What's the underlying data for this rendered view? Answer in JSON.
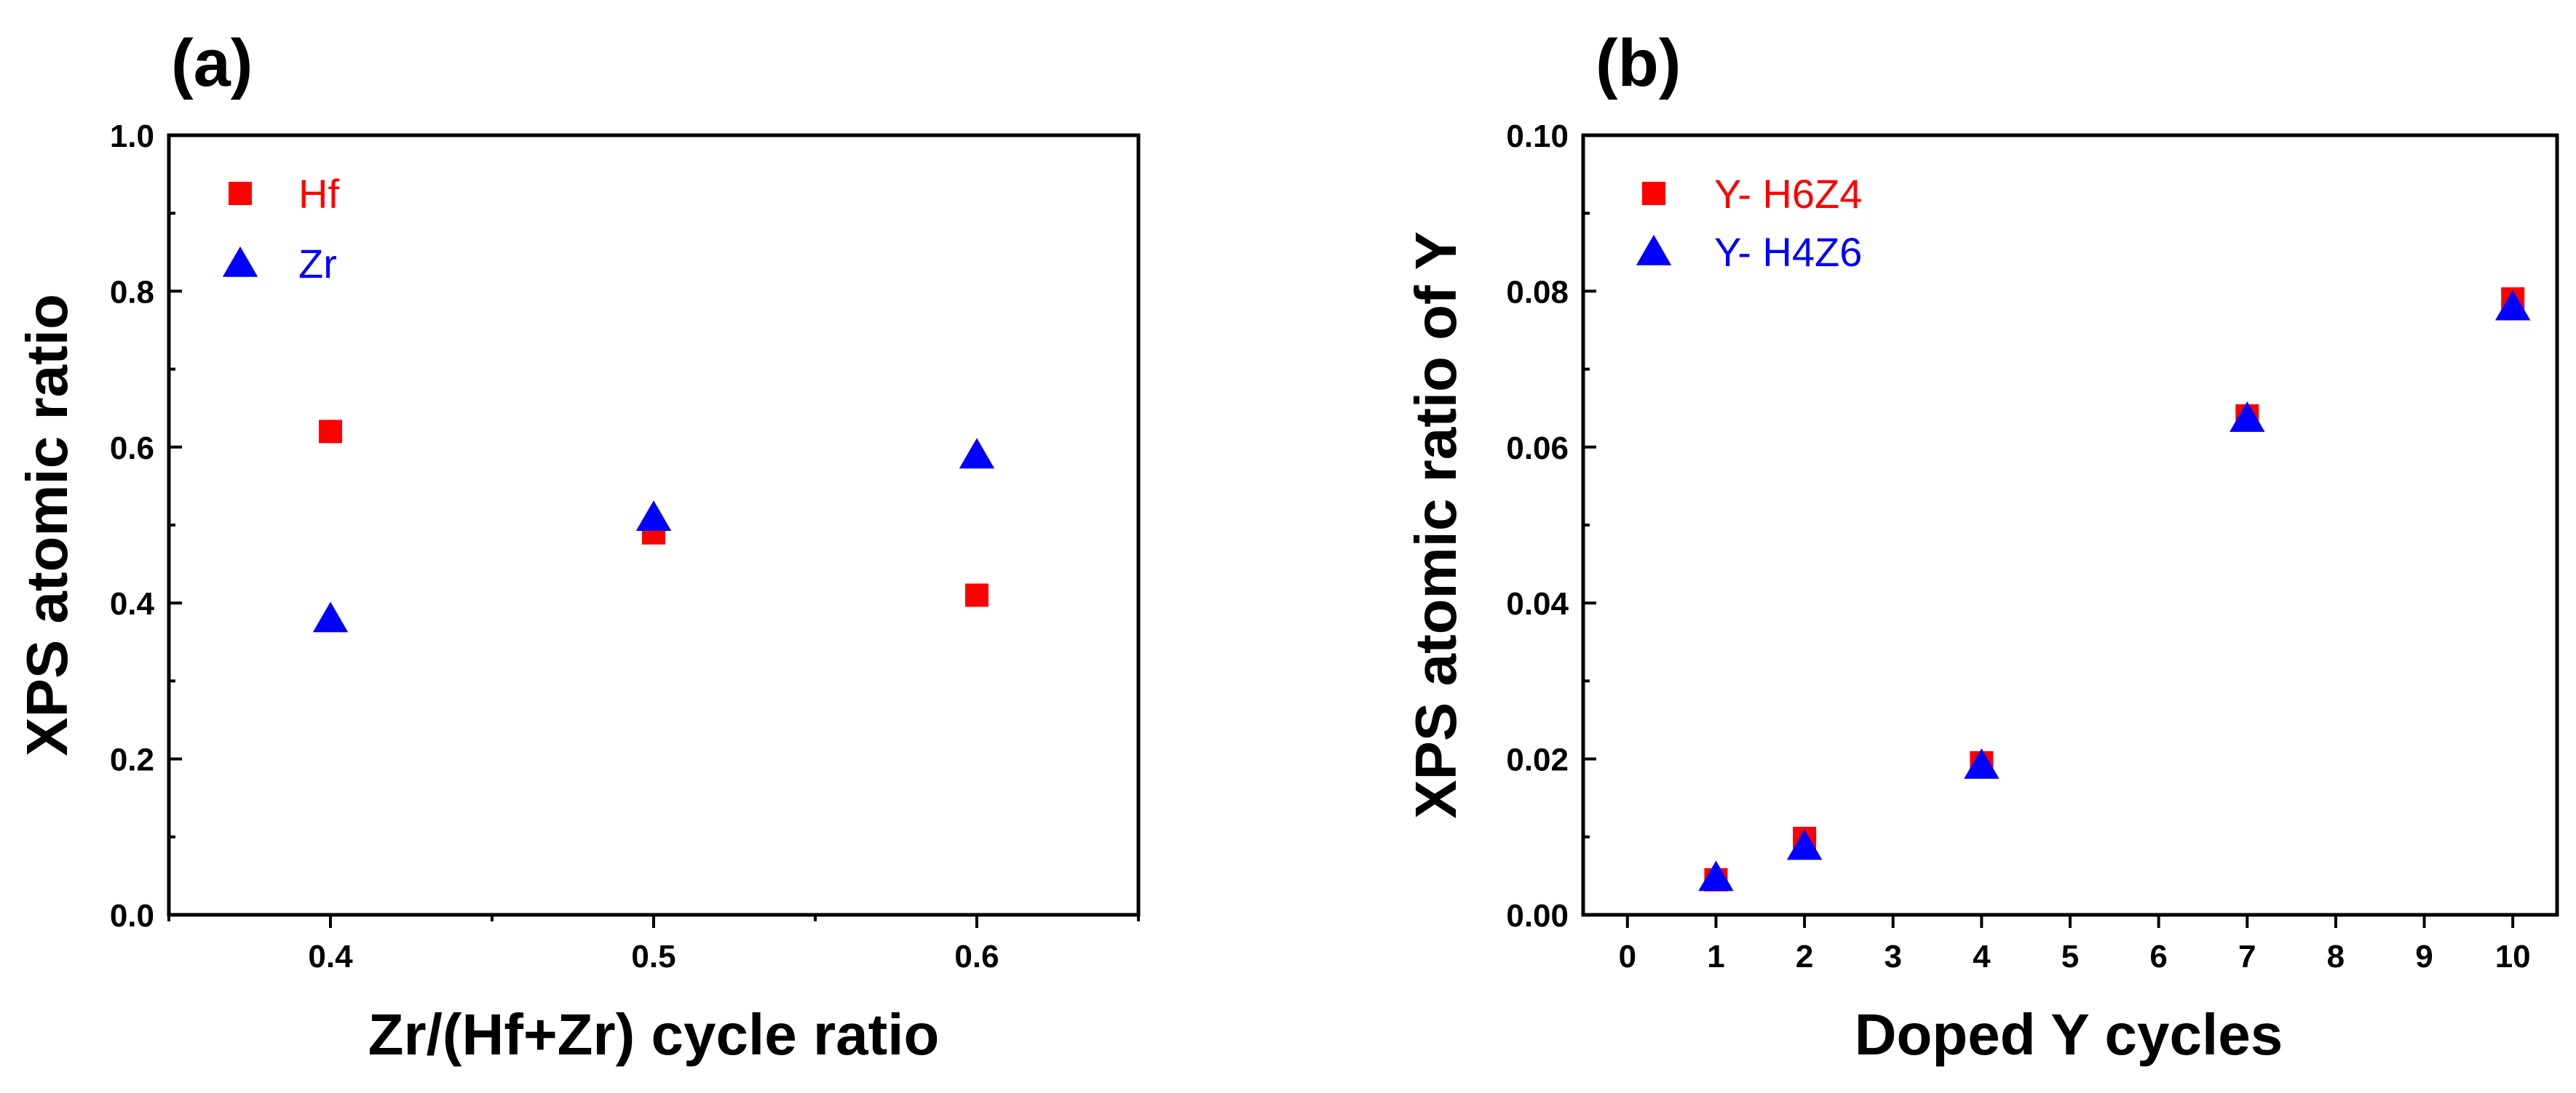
{
  "chart_data": [
    {
      "type": "scatter",
      "panel_label": "(a)",
      "title": "",
      "xlabel": "Zr/(Hf+Zr) cycle ratio",
      "ylabel": "XPS atomic ratio",
      "xlim": [
        0.35,
        0.65
      ],
      "ylim": [
        0.0,
        1.0
      ],
      "xticks": [
        0.4,
        0.5,
        0.6
      ],
      "xtick_labels": [
        "0.4",
        "0.5",
        "0.6"
      ],
      "yticks": [
        0.0,
        0.2,
        0.4,
        0.6,
        0.8,
        1.0
      ],
      "ytick_labels": [
        "0.0",
        "0.2",
        "0.4",
        "0.6",
        "0.8",
        "1.0"
      ],
      "grid": false,
      "legend_position": "top-left",
      "series": [
        {
          "name": "Hf",
          "marker": "square",
          "color": "#ff0000",
          "x": [
            0.4,
            0.5,
            0.6
          ],
          "y": [
            0.62,
            0.49,
            0.41
          ]
        },
        {
          "name": "Zr",
          "marker": "triangle",
          "color": "#0000ff",
          "x": [
            0.4,
            0.5,
            0.6
          ],
          "y": [
            0.38,
            0.51,
            0.59
          ]
        }
      ]
    },
    {
      "type": "scatter",
      "panel_label": "(b)",
      "title": "",
      "xlabel": "Doped Y cycles",
      "ylabel": "XPS atomic ratio of Y",
      "xlim": [
        -0.5,
        10.5
      ],
      "ylim": [
        0.0,
        0.1
      ],
      "xticks": [
        0,
        1,
        2,
        3,
        4,
        5,
        6,
        7,
        8,
        9,
        10
      ],
      "xtick_labels": [
        "0",
        "1",
        "2",
        "3",
        "4",
        "5",
        "6",
        "7",
        "8",
        "9",
        "10"
      ],
      "yticks": [
        0.0,
        0.02,
        0.04,
        0.06,
        0.08,
        0.1
      ],
      "ytick_labels": [
        "0.00",
        "0.02",
        "0.04",
        "0.06",
        "0.08",
        "0.10"
      ],
      "grid": false,
      "legend_position": "top-left",
      "series": [
        {
          "name": "Y- H6Z4",
          "marker": "square",
          "color": "#ff0000",
          "x": [
            1,
            2,
            4,
            7,
            10
          ],
          "y": [
            0.0045,
            0.0098,
            0.0195,
            0.064,
            0.079
          ]
        },
        {
          "name": "Y- H4Z6",
          "marker": "triangle",
          "color": "#0000ff",
          "x": [
            1,
            2,
            4,
            7,
            10
          ],
          "y": [
            0.0048,
            0.0088,
            0.0192,
            0.0637,
            0.078
          ]
        }
      ]
    }
  ]
}
